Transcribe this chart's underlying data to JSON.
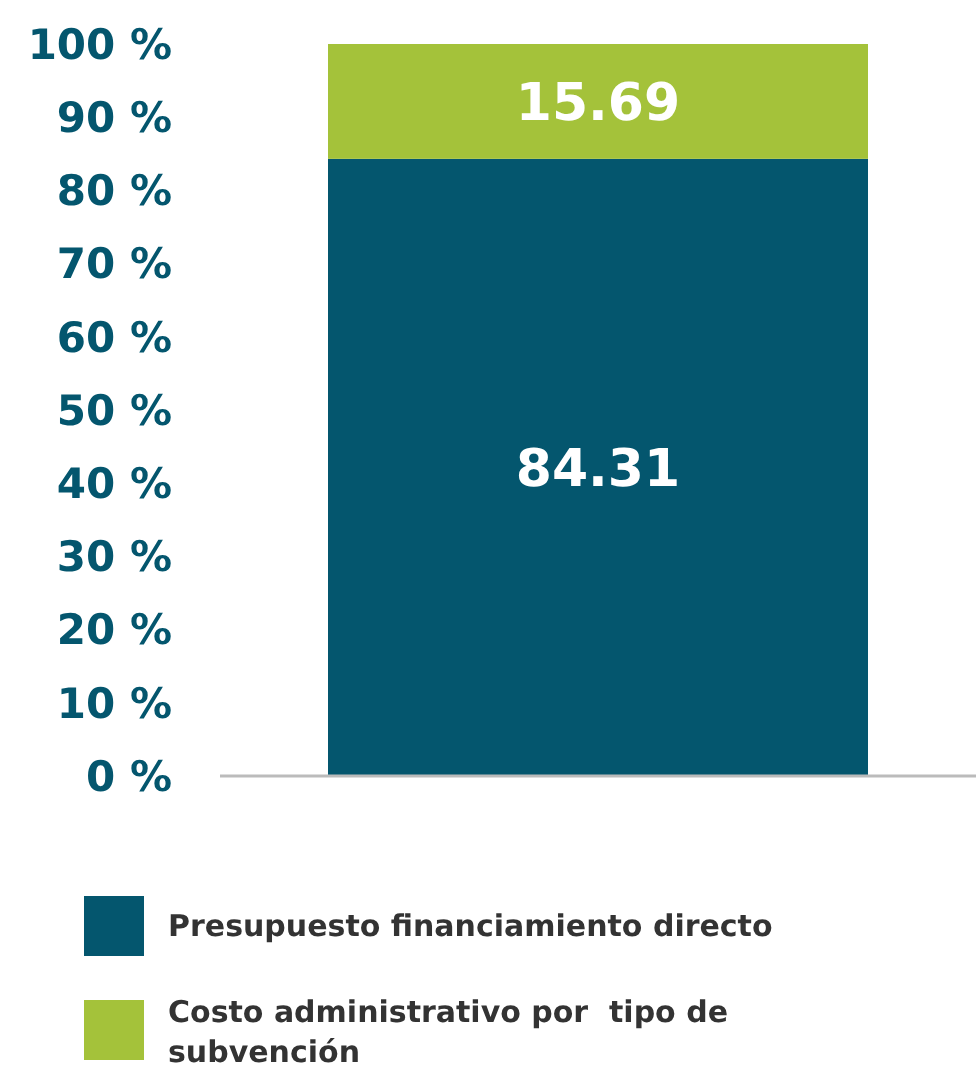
{
  "chart_data": {
    "type": "bar",
    "stacked": true,
    "categories": [
      null
    ],
    "series": [
      {
        "name": "Presupuesto financiamiento directo",
        "color": "#04566e",
        "values": [
          84.31
        ]
      },
      {
        "name": "Costo administrativo por  tipo de subvención",
        "color": "#a4c23a",
        "values": [
          15.69
        ]
      }
    ],
    "ylim": [
      0,
      100
    ],
    "yticks": [
      {
        "value": 0,
        "label": "0 %"
      },
      {
        "value": 10,
        "label": "10 %"
      },
      {
        "value": 20,
        "label": "20 %"
      },
      {
        "value": 30,
        "label": "30 %"
      },
      {
        "value": 40,
        "label": "40 %"
      },
      {
        "value": 50,
        "label": "50 %"
      },
      {
        "value": 60,
        "label": "60 %"
      },
      {
        "value": 70,
        "label": "70 %"
      },
      {
        "value": 80,
        "label": "80 %"
      },
      {
        "value": 90,
        "label": "90 %"
      },
      {
        "value": 100,
        "label": "100 %"
      }
    ],
    "data_labels": true,
    "legend": "bottom",
    "grid": false
  }
}
